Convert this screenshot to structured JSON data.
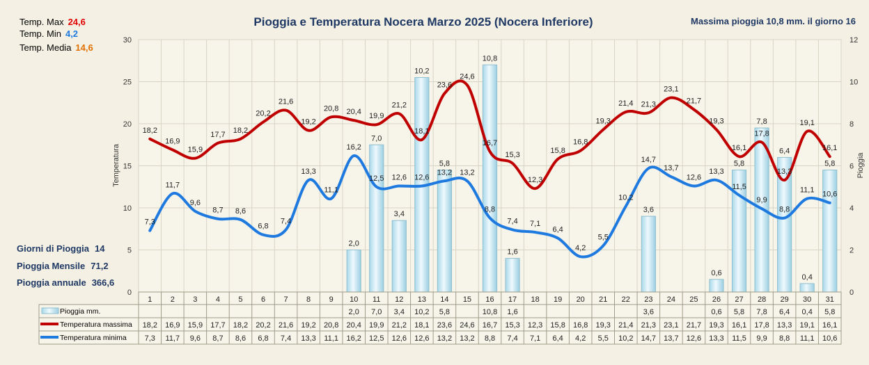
{
  "header": {
    "title": "Pioggia e Temperatura Nocera Marzo 2025 (Nocera Inferiore)",
    "max_rain_label": "Massima pioggia",
    "max_rain_value": "10,8 mm. il giorno 16"
  },
  "stats": {
    "temp_max_label": "Temp. Max",
    "temp_max_value": "24,6",
    "temp_min_label": "Temp.  Min",
    "temp_min_value": "4,2",
    "temp_media_label": "Temp. Media",
    "temp_media_value": "14,6"
  },
  "summary": {
    "rain_days_label": "Giorni di Pioggia",
    "rain_days_value": "14",
    "monthly_rain_label": "Pioggia Mensile",
    "monthly_rain_value": "71,2",
    "annual_rain_label": "Pioggia annuale",
    "annual_rain_value": "366,6"
  },
  "colors": {
    "tmax": "#c00000",
    "tmin": "#1f7ae0",
    "bar_fill": "#cfeaf4",
    "bar_stroke": "#8fbfd0",
    "title": "#1f3864",
    "max_value": "#e00000",
    "min_value": "#1f7ae0",
    "media_value": "#e07000"
  },
  "chart_data": {
    "type": "bar+line",
    "categories": [
      "1",
      "2",
      "3",
      "4",
      "5",
      "6",
      "7",
      "8",
      "9",
      "10",
      "11",
      "12",
      "13",
      "14",
      "15",
      "16",
      "17",
      "18",
      "19",
      "20",
      "21",
      "22",
      "23",
      "24",
      "25",
      "26",
      "27",
      "28",
      "29",
      "30",
      "31"
    ],
    "y_left_label": "Temperatura",
    "y_right_label": "Pioggia",
    "y_left_range": [
      0,
      30
    ],
    "y_left_ticks": [
      0,
      5,
      10,
      15,
      20,
      25,
      30
    ],
    "y_right_range": [
      0,
      12
    ],
    "y_right_ticks": [
      0,
      2,
      4,
      6,
      8,
      10,
      12
    ],
    "grid": true,
    "series": [
      {
        "name": "Pioggia mm.",
        "type": "bar",
        "axis": "right",
        "values": [
          null,
          null,
          null,
          null,
          null,
          null,
          null,
          null,
          null,
          2.0,
          7.0,
          3.4,
          10.2,
          5.8,
          null,
          10.8,
          1.6,
          null,
          null,
          null,
          null,
          null,
          3.6,
          null,
          null,
          0.6,
          5.8,
          7.8,
          6.4,
          0.4,
          5.8
        ],
        "labels": [
          "",
          "",
          "",
          "",
          "",
          "",
          "",
          "",
          "",
          "2,0",
          "7,0",
          "3,4",
          "10,2",
          "5,8",
          "",
          "10,8",
          "1,6",
          "",
          "",
          "",
          "",
          "",
          "3,6",
          "",
          "",
          "0,6",
          "5,8",
          "7,8",
          "6,4",
          "0,4",
          "5,8"
        ]
      },
      {
        "name": "Temperatura massima",
        "type": "line",
        "axis": "left",
        "values": [
          18.2,
          16.9,
          15.9,
          17.7,
          18.2,
          20.2,
          21.6,
          19.2,
          20.8,
          20.4,
          19.9,
          21.2,
          18.1,
          23.6,
          24.6,
          16.7,
          15.3,
          12.3,
          15.8,
          16.8,
          19.3,
          21.4,
          21.3,
          23.1,
          21.7,
          19.3,
          16.1,
          17.8,
          13.3,
          19.1,
          16.1
        ],
        "labels": [
          "18,2",
          "16,9",
          "15,9",
          "17,7",
          "18,2",
          "20,2",
          "21,6",
          "19,2",
          "20,8",
          "20,4",
          "19,9",
          "21,2",
          "18,1",
          "23,6",
          "24,6",
          "16,7",
          "15,3",
          "12,3",
          "15,8",
          "16,8",
          "19,3",
          "21,4",
          "21,3",
          "23,1",
          "21,7",
          "19,3",
          "16,1",
          "17,8",
          "13,3",
          "19,1",
          "16,1"
        ]
      },
      {
        "name": "Temperatura minima",
        "type": "line",
        "axis": "left",
        "values": [
          7.3,
          11.7,
          9.6,
          8.7,
          8.6,
          6.8,
          7.4,
          13.3,
          11.1,
          16.2,
          12.5,
          12.6,
          12.6,
          13.2,
          13.2,
          8.8,
          7.4,
          7.1,
          6.4,
          4.2,
          5.5,
          10.2,
          14.7,
          13.7,
          12.6,
          13.3,
          11.5,
          9.9,
          8.8,
          11.1,
          10.6
        ],
        "labels": [
          "7,3",
          "11,7",
          "9,6",
          "8,7",
          "8,6",
          "6,8",
          "7,4",
          "13,3",
          "11,1",
          "16,2",
          "12,5",
          "12,6",
          "12,6",
          "13,2",
          "13,2",
          "8,8",
          "7,4",
          "7,1",
          "6,4",
          "4,2",
          "5,5",
          "10,2",
          "14,7",
          "13,7",
          "12,6",
          "13,3",
          "11,5",
          "9,9",
          "8,8",
          "11,1",
          "10,6"
        ]
      }
    ]
  }
}
